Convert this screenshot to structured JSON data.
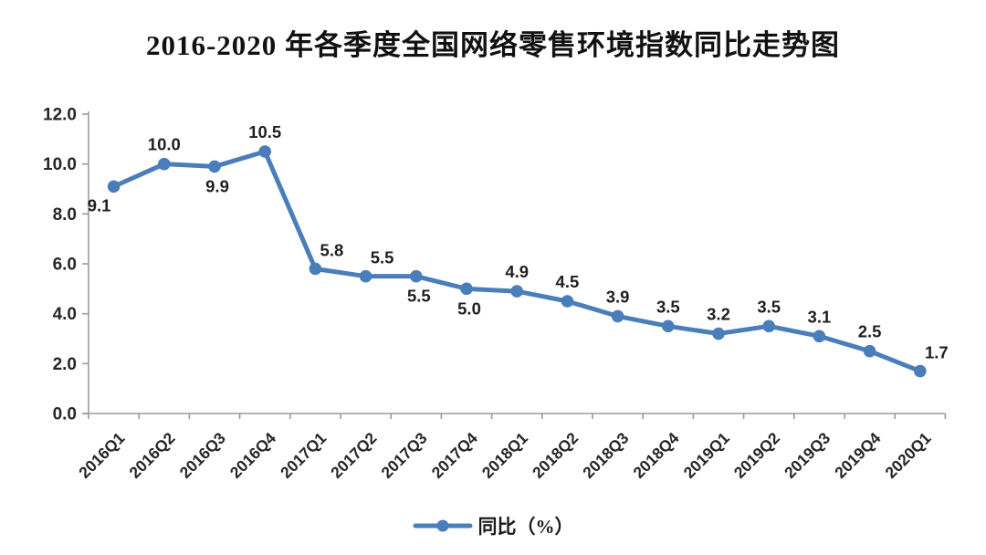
{
  "title": "2016-2020 年各季度全国网络零售环境指数同比走势图",
  "chart_data": {
    "type": "line",
    "categories": [
      "2016Q1",
      "2016Q2",
      "2016Q3",
      "2016Q4",
      "2017Q1",
      "2017Q2",
      "2017Q3",
      "2017Q4",
      "2018Q1",
      "2018Q2",
      "2018Q3",
      "2018Q4",
      "2019Q1",
      "2019Q2",
      "2019Q3",
      "2019Q4",
      "2020Q1"
    ],
    "series": [
      {
        "name": "同比（%）",
        "values": [
          9.1,
          10.0,
          9.9,
          10.5,
          5.8,
          5.5,
          5.5,
          5.0,
          4.9,
          4.5,
          3.9,
          3.5,
          3.2,
          3.5,
          3.1,
          2.5,
          1.7
        ],
        "data_labels": [
          "9.1",
          "10.0",
          "9.9",
          "10.5",
          "5.8",
          "5.5",
          "5.5",
          "5.0",
          "4.9",
          "4.5",
          "3.9",
          "3.5",
          "3.2",
          "3.5",
          "3.1",
          "2.5",
          "1.7"
        ],
        "label_positions": [
          "below-left",
          "above",
          "below",
          "above",
          "above-right",
          "above-right",
          "below",
          "below",
          "above",
          "above",
          "above",
          "above",
          "above",
          "above",
          "above",
          "above",
          "above-right"
        ]
      }
    ],
    "xlabel": "",
    "ylabel": "",
    "ylim": [
      0,
      12
    ],
    "ytick_step": 2,
    "ytick_labels": [
      "0.0",
      "2.0",
      "4.0",
      "6.0",
      "8.0",
      "10.0",
      "12.0"
    ],
    "grid": false,
    "legend": {
      "label": "同比（%）",
      "position": "bottom"
    },
    "colors": {
      "line": "#4a7ebb",
      "marker": "#4a7ebb",
      "axis": "#9b9b9b",
      "data_label": "#1f1f1f",
      "tick_label": "#262626"
    }
  }
}
